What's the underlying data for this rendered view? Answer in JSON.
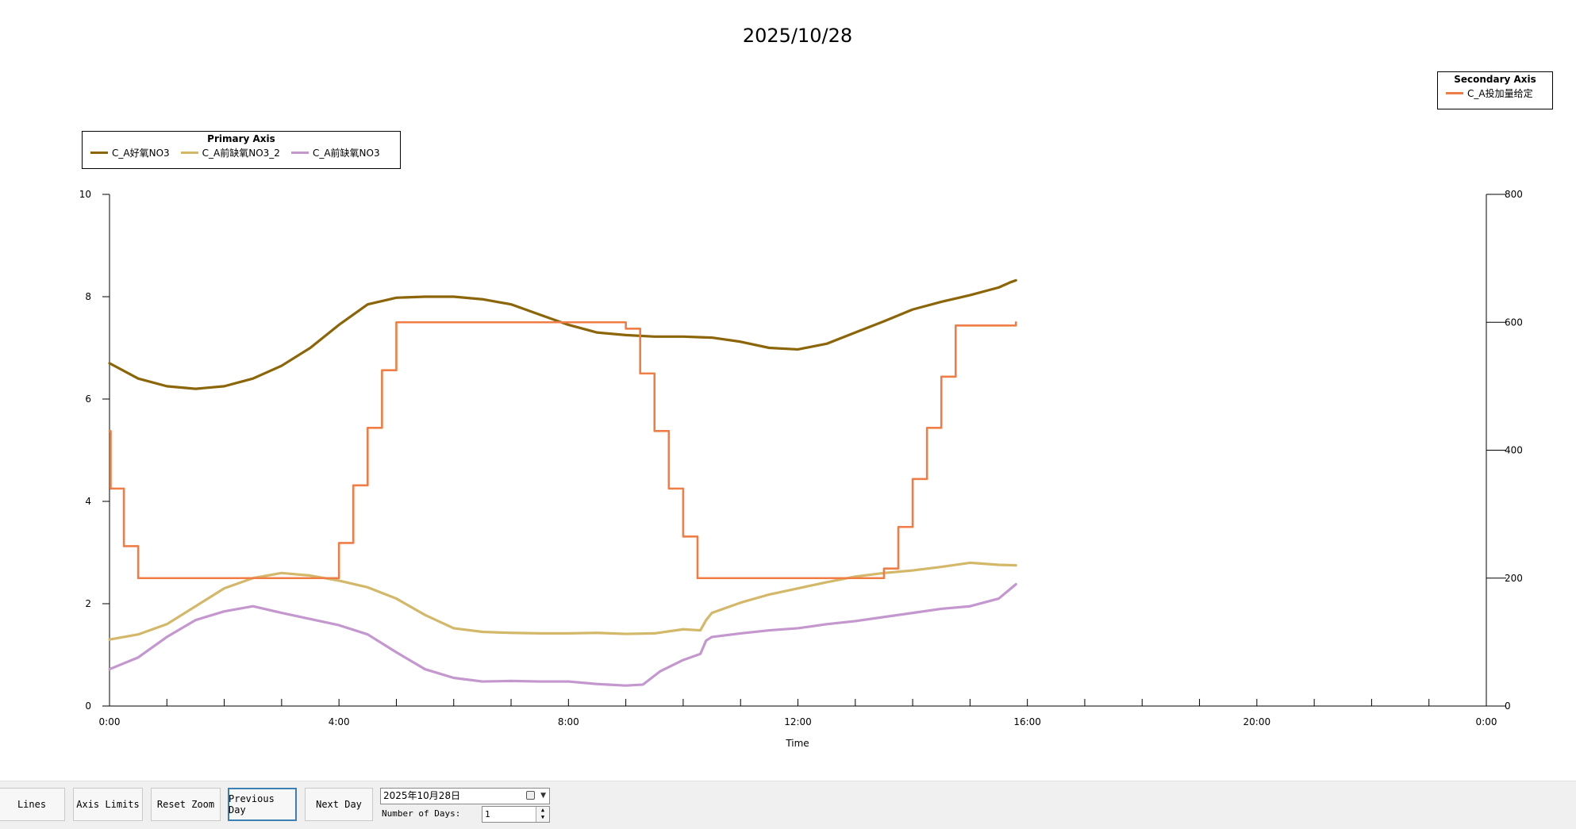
{
  "chart_data": {
    "type": "line",
    "title": "2025/10/28",
    "xlabel": "Time",
    "x_ticks": [
      "0:00",
      "4:00",
      "8:00",
      "12:00",
      "16:00",
      "20:00",
      "0:00"
    ],
    "x_range_hours": [
      0,
      24
    ],
    "y_primary": {
      "range": [
        0,
        10
      ],
      "ticks": [
        "0",
        "2",
        "4",
        "6",
        "8",
        "10"
      ]
    },
    "y_secondary": {
      "range": [
        0,
        800
      ],
      "ticks": [
        "0",
        "200",
        "400",
        "600",
        "800"
      ]
    },
    "grid": false,
    "legend_primary": {
      "title": "Primary Axis",
      "placement": "top-left"
    },
    "legend_secondary": {
      "title": "Secondary Axis",
      "placement": "top-right"
    },
    "series": [
      {
        "name": "C_A好氧NO3",
        "axis": "primary",
        "color": "#8b6508",
        "step": false,
        "x": [
          0,
          0.5,
          1,
          1.5,
          2,
          2.5,
          3,
          3.5,
          4,
          4.5,
          5,
          5.5,
          6,
          6.5,
          7,
          7.5,
          8,
          8.5,
          9,
          9.5,
          10,
          10.5,
          11,
          11.5,
          12,
          12.5,
          13,
          13.5,
          14,
          14.5,
          15,
          15.5,
          15.7,
          15.8
        ],
        "y": [
          6.7,
          6.4,
          6.25,
          6.2,
          6.25,
          6.4,
          6.65,
          7.0,
          7.45,
          7.85,
          7.98,
          8.0,
          8.0,
          7.95,
          7.85,
          7.65,
          7.45,
          7.3,
          7.25,
          7.22,
          7.22,
          7.2,
          7.12,
          7.0,
          6.97,
          7.08,
          7.3,
          7.52,
          7.75,
          7.9,
          8.03,
          8.18,
          8.28,
          8.32
        ]
      },
      {
        "name": "C_A前缺氧NO3_2",
        "axis": "primary",
        "color": "#d4b86a",
        "step": false,
        "x": [
          0,
          0.5,
          1,
          1.5,
          2,
          2.5,
          3,
          3.5,
          4,
          4.5,
          5,
          5.5,
          6,
          6.5,
          7,
          7.5,
          8,
          8.5,
          9,
          9.5,
          10,
          10.3,
          10.4,
          10.5,
          11,
          11.5,
          12,
          12.5,
          13,
          13.5,
          14,
          14.5,
          15,
          15.5,
          15.8
        ],
        "y": [
          1.3,
          1.4,
          1.6,
          1.95,
          2.3,
          2.5,
          2.6,
          2.55,
          2.45,
          2.32,
          2.1,
          1.78,
          1.52,
          1.45,
          1.43,
          1.42,
          1.42,
          1.43,
          1.41,
          1.42,
          1.5,
          1.48,
          1.68,
          1.82,
          2.02,
          2.18,
          2.3,
          2.42,
          2.53,
          2.6,
          2.65,
          2.72,
          2.8,
          2.76,
          2.75
        ]
      },
      {
        "name": "C_A前缺氧NO3",
        "axis": "primary",
        "color": "#c497cf",
        "step": false,
        "x": [
          0,
          0.5,
          1,
          1.5,
          2,
          2.5,
          3,
          3.5,
          4,
          4.5,
          5,
          5.5,
          6,
          6.5,
          7,
          7.5,
          8,
          8.5,
          9,
          9.3,
          9.6,
          10,
          10.3,
          10.4,
          10.5,
          11,
          11.5,
          12,
          12.5,
          13,
          13.5,
          14,
          14.5,
          15,
          15.5,
          15.8
        ],
        "y": [
          0.72,
          0.95,
          1.35,
          1.68,
          1.85,
          1.95,
          1.82,
          1.7,
          1.58,
          1.4,
          1.05,
          0.72,
          0.55,
          0.48,
          0.49,
          0.48,
          0.48,
          0.43,
          0.4,
          0.42,
          0.68,
          0.9,
          1.02,
          1.28,
          1.35,
          1.42,
          1.48,
          1.52,
          1.6,
          1.66,
          1.74,
          1.82,
          1.9,
          1.95,
          2.1,
          2.38
        ]
      },
      {
        "name": "C_A投加量给定",
        "axis": "secondary",
        "color": "#ef7d45",
        "step": true,
        "x": [
          0,
          0.02,
          0.25,
          0.5,
          4.0,
          4.25,
          4.5,
          4.75,
          5.0,
          9.0,
          9.25,
          9.5,
          9.75,
          10.0,
          10.25,
          13.5,
          13.75,
          14.0,
          14.25,
          14.5,
          14.75,
          15.8
        ],
        "y": [
          430,
          340,
          250,
          200,
          255,
          345,
          435,
          525,
          600,
          590,
          520,
          430,
          340,
          265,
          200,
          215,
          280,
          355,
          435,
          515,
          595,
          600
        ]
      }
    ]
  },
  "toolbar": {
    "lines_label": "Lines",
    "axis_limits_label": "Axis Limits",
    "reset_zoom_label": "Reset Zoom",
    "previous_day_label": "Previous Day",
    "next_day_label": "Next Day",
    "date_value": "2025年10月28日",
    "days_label": "Number of Days:",
    "days_value": "1"
  }
}
